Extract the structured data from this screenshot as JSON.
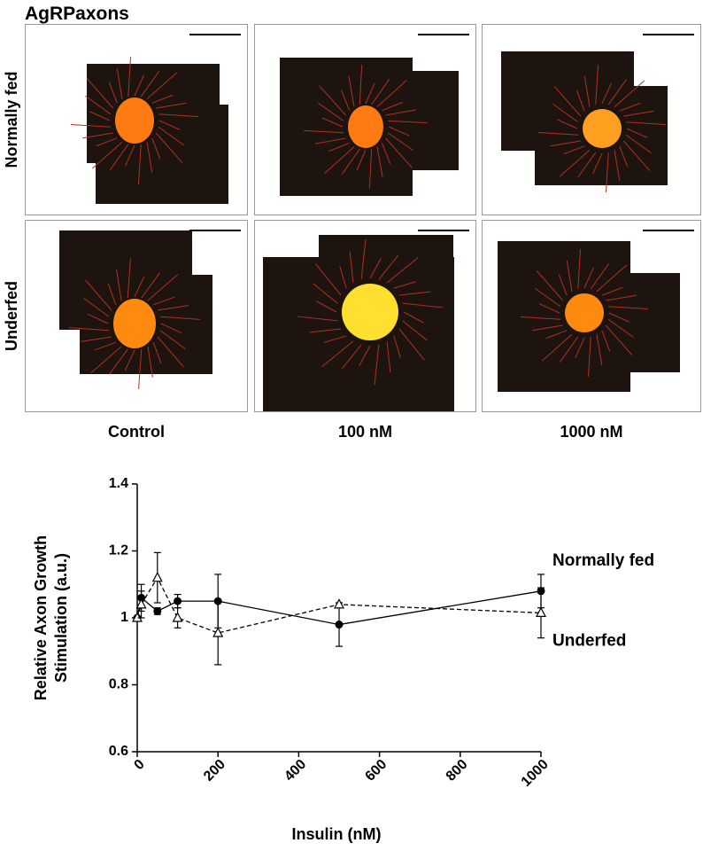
{
  "title": "AgRPaxons",
  "rows": [
    "Normally fed",
    "Underfed"
  ],
  "columns": [
    "Control",
    "100 nM",
    "1000 nM"
  ],
  "chart_data": {
    "type": "line",
    "xlabel": "Insulin (nM)",
    "ylabel_lines": [
      "Relative Axon Growth",
      "Stimulation (a.u.)"
    ],
    "xlim": [
      0,
      1000
    ],
    "xticks": [
      0,
      200,
      400,
      600,
      800,
      1000
    ],
    "ylim": [
      0.6,
      1.4
    ],
    "yticks": [
      0.6,
      0.8,
      1.0,
      1.2,
      1.4
    ],
    "series": [
      {
        "name": "Normally fed",
        "color": "#000000",
        "linestyle": "solid",
        "marker": "circle-filled",
        "x": [
          0,
          10,
          50,
          100,
          200,
          500,
          1000
        ],
        "values": [
          1.0,
          1.06,
          1.02,
          1.05,
          1.05,
          0.98,
          1.08
        ],
        "errors": [
          0,
          0.04,
          0.01,
          0.02,
          0.08,
          0.065,
          0.05
        ]
      },
      {
        "name": "Underfed",
        "color": "#000000",
        "linestyle": "dashed",
        "marker": "triangle-open",
        "x": [
          0,
          10,
          50,
          100,
          200,
          500,
          1000
        ],
        "values": [
          1.0,
          1.04,
          1.12,
          1.0,
          0.955,
          1.04,
          1.015
        ],
        "errors": [
          0,
          0.04,
          0.075,
          0.03,
          0.095,
          0.005,
          0.075
        ]
      }
    ]
  }
}
